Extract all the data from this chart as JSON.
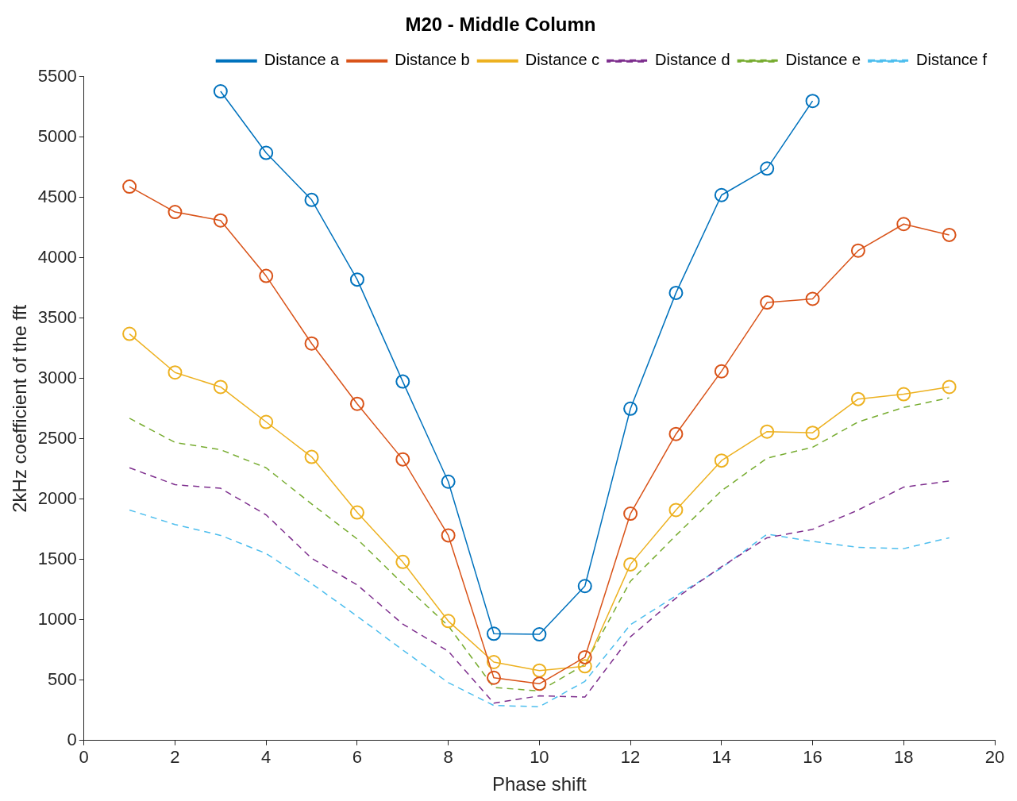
{
  "chart_data": {
    "type": "line",
    "title": "M20 - Middle Column",
    "xlabel": "Phase shift",
    "ylabel": "2kHz coefficient of the fft",
    "x": [
      1,
      2,
      3,
      4,
      5,
      6,
      7,
      8,
      9,
      10,
      11,
      12,
      13,
      14,
      15,
      16,
      17,
      18,
      19
    ],
    "series": [
      {
        "name": "Distance a",
        "color": "#0072bd",
        "marker": "circle",
        "line_style": "solid",
        "values": [
          null,
          null,
          5380,
          4870,
          4480,
          3820,
          2975,
          2145,
          885,
          880,
          1280,
          2750,
          3710,
          4520,
          4740,
          5300,
          null,
          null,
          null
        ]
      },
      {
        "name": "Distance b",
        "color": "#d95319",
        "marker": "circle",
        "line_style": "solid",
        "values": [
          4590,
          4380,
          4310,
          3850,
          3290,
          2790,
          2330,
          1700,
          520,
          470,
          690,
          1880,
          2540,
          3060,
          3630,
          3660,
          4060,
          4280,
          4190
        ]
      },
      {
        "name": "Distance c",
        "color": "#edb120",
        "marker": "circle",
        "line_style": "solid",
        "values": [
          3370,
          3050,
          2930,
          2640,
          2350,
          1890,
          1480,
          990,
          650,
          580,
          615,
          1460,
          1910,
          2320,
          2560,
          2550,
          2830,
          2870,
          2930
        ]
      },
      {
        "name": "Distance d",
        "color": "#7e2f8e",
        "marker": "none",
        "line_style": "dashed",
        "values": [
          2260,
          2120,
          2090,
          1870,
          1510,
          1290,
          965,
          740,
          310,
          370,
          360,
          860,
          1180,
          1440,
          1680,
          1750,
          1910,
          2100,
          2150
        ]
      },
      {
        "name": "Distance e",
        "color": "#77ac30",
        "marker": "none",
        "line_style": "dashed",
        "values": [
          2670,
          2470,
          2410,
          2260,
          1960,
          1670,
          1300,
          950,
          440,
          410,
          630,
          1320,
          1700,
          2070,
          2340,
          2430,
          2640,
          2760,
          2840
        ]
      },
      {
        "name": "Distance f",
        "color": "#4dbeee",
        "marker": "none",
        "line_style": "dashed",
        "values": [
          1910,
          1790,
          1700,
          1550,
          1300,
          1030,
          750,
          480,
          290,
          280,
          490,
          960,
          1200,
          1430,
          1710,
          1650,
          1600,
          1590,
          1680
        ]
      }
    ],
    "xlim": [
      0,
      20
    ],
    "xticks": [
      0,
      2,
      4,
      6,
      8,
      10,
      12,
      14,
      16,
      18,
      20
    ],
    "ylim": [
      0,
      5500
    ],
    "yticks": [
      0,
      500,
      1000,
      1500,
      2000,
      2500,
      3000,
      3500,
      4000,
      4500,
      5000,
      5500
    ],
    "grid": false,
    "legend": "top right"
  }
}
